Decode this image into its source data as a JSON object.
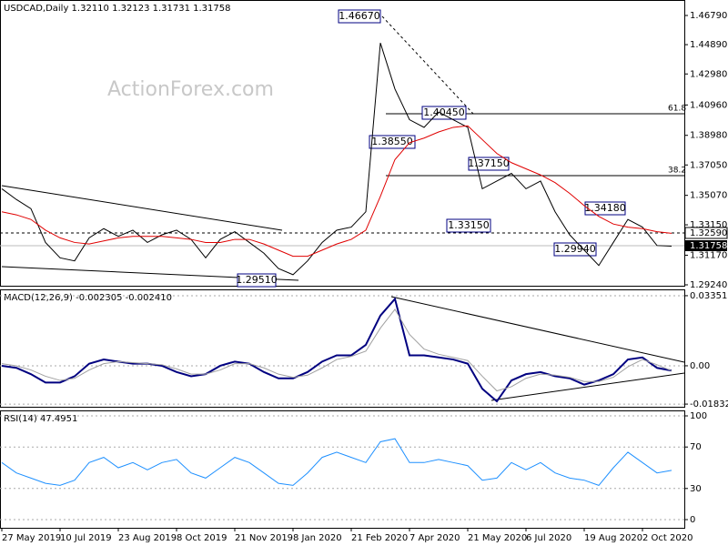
{
  "chart_data": [
    {
      "type": "line",
      "title": "USDCAD,Daily  1.32110 1.32123 1.31731 1.31758",
      "watermark": "ActionForex.com",
      "ylim": [
        1.2918,
        1.4768
      ],
      "yticks": [
        {
          "value": 1.4679,
          "label": "1.46790"
        },
        {
          "value": 1.4489,
          "label": "1.44890"
        },
        {
          "value": 1.4298,
          "label": "1.42980"
        },
        {
          "value": 1.4096,
          "label": "1.40960"
        },
        {
          "value": 1.3898,
          "label": "1.38980"
        },
        {
          "value": 1.3705,
          "label": "1.37050"
        },
        {
          "value": 1.3507,
          "label": "1.35070"
        },
        {
          "value": 1.3315,
          "label": "1.33150"
        },
        {
          "value": 1.3117,
          "label": "1.31170"
        },
        {
          "value": 1.2924,
          "label": "1.29240"
        }
      ],
      "annotations": [
        "1.46670",
        "1.38550",
        "1.40450",
        "1.37150",
        "1.33150",
        "1.34180",
        "1.29940",
        "1.29510",
        "61.8",
        "38.2",
        "1.32590",
        "1.31758"
      ],
      "series": [
        {
          "name": "USDCAD",
          "color": "#000000",
          "values": [
            1.355,
            1.348,
            1.342,
            1.32,
            1.31,
            1.308,
            1.323,
            1.329,
            1.324,
            1.328,
            1.32,
            1.325,
            1.328,
            1.322,
            1.31,
            1.322,
            1.327,
            1.32,
            1.313,
            1.303,
            1.299,
            1.308,
            1.32,
            1.328,
            1.33,
            1.34,
            1.45,
            1.42,
            1.4,
            1.395,
            1.405,
            1.4,
            1.395,
            1.355,
            1.36,
            1.365,
            1.355,
            1.36,
            1.34,
            1.325,
            1.315,
            1.305,
            1.32,
            1.335,
            1.33,
            1.318,
            1.3176
          ]
        },
        {
          "name": "MA",
          "color": "#e00000",
          "values": [
            1.34,
            1.338,
            1.335,
            1.328,
            1.323,
            1.32,
            1.319,
            1.321,
            1.323,
            1.324,
            1.324,
            1.324,
            1.323,
            1.322,
            1.32,
            1.32,
            1.322,
            1.322,
            1.319,
            1.315,
            1.311,
            1.311,
            1.315,
            1.319,
            1.322,
            1.328,
            1.35,
            1.374,
            1.385,
            1.388,
            1.392,
            1.395,
            1.396,
            1.387,
            1.378,
            1.372,
            1.368,
            1.364,
            1.359,
            1.352,
            1.344,
            1.337,
            1.332,
            1.33,
            1.329,
            1.327,
            1.326
          ]
        }
      ]
    },
    {
      "type": "line",
      "title": "MACD(12,26,9) -0.002305 -0.002410",
      "ylim": [
        -0.0196,
        0.0361
      ],
      "yticks": [
        0.033515,
        {
          "value": 0,
          "label": "0.00"
        },
        -0.018324
      ],
      "series": [
        {
          "name": "MACD",
          "color": "#000080",
          "values": [
            0.0,
            -0.001,
            -0.004,
            -0.008,
            -0.008,
            -0.005,
            0.001,
            0.003,
            0.002,
            0.001,
            0.001,
            0.0,
            -0.003,
            -0.005,
            -0.004,
            0.0,
            0.002,
            0.001,
            -0.003,
            -0.006,
            -0.006,
            -0.003,
            0.002,
            0.005,
            0.005,
            0.01,
            0.024,
            0.032,
            0.005,
            0.005,
            0.004,
            0.003,
            0.001,
            -0.011,
            -0.017,
            -0.007,
            -0.004,
            -0.003,
            -0.005,
            -0.006,
            -0.009,
            -0.007,
            -0.004,
            0.003,
            0.004,
            -0.001,
            -0.0023
          ]
        },
        {
          "name": "Signal",
          "color": "#a0a0a0",
          "values": [
            0.001,
            0.0,
            -0.002,
            -0.005,
            -0.007,
            -0.006,
            -0.002,
            0.001,
            0.002,
            0.0015,
            0.001,
            0.0005,
            -0.0015,
            -0.004,
            -0.004,
            -0.002,
            0.001,
            0.001,
            -0.001,
            -0.004,
            -0.0055,
            -0.0045,
            -0.001,
            0.003,
            0.0045,
            0.007,
            0.018,
            0.027,
            0.015,
            0.008,
            0.0055,
            0.004,
            0.0025,
            -0.005,
            -0.012,
            -0.01,
            -0.006,
            -0.004,
            -0.0045,
            -0.0055,
            -0.0075,
            -0.0075,
            -0.0055,
            -0.0005,
            0.003,
            0.0005,
            -0.0024
          ]
        }
      ]
    },
    {
      "type": "line",
      "title": "RSI(14) 47.4951",
      "ylim": [
        -7.9,
        104.4
      ],
      "yticks": [
        100,
        70,
        30,
        0
      ],
      "categories": [
        "27 May 2019",
        null,
        null,
        null,
        "10 Jul 2019",
        null,
        null,
        null,
        "23 Aug 2019",
        null,
        null,
        null,
        "8 Oct 2019",
        null,
        null,
        null,
        "21 Nov 2019",
        null,
        null,
        null,
        "8 Jan 2020",
        null,
        null,
        null,
        "21 Feb 2020",
        null,
        null,
        null,
        "7 Apr 2020",
        null,
        null,
        null,
        "21 May 2020",
        null,
        null,
        null,
        "6 Jul 2020",
        null,
        null,
        null,
        "19 Aug 2020",
        null,
        null,
        null,
        "2 Oct 2020",
        null,
        null
      ],
      "series": [
        {
          "name": "RSI",
          "color": "#1e90ff",
          "values": [
            55,
            45,
            40,
            35,
            33,
            38,
            55,
            60,
            50,
            55,
            48,
            55,
            58,
            45,
            40,
            50,
            60,
            55,
            45,
            35,
            33,
            45,
            60,
            65,
            60,
            55,
            75,
            78,
            55,
            55,
            58,
            55,
            52,
            38,
            40,
            55,
            48,
            55,
            45,
            40,
            38,
            33,
            50,
            65,
            55,
            45,
            47.5
          ]
        }
      ]
    }
  ]
}
